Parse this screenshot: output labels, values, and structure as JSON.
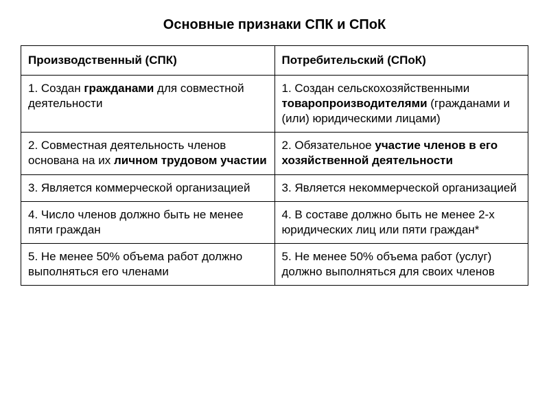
{
  "title": "Основные признаки  СПК и  СПоК",
  "headers": {
    "left": "Производственный (СПК)",
    "right": "Потребительский (СПоК)"
  },
  "rows": [
    {
      "left": {
        "prefix": "  1. Создан ",
        "bold": "гражданами",
        "suffix": " для совместной деятельности"
      },
      "right": {
        "prefix": "1.   Создан сельскохозяйственными ",
        "bold": "товаропроизводителями",
        "suffix": " (гражданами и (или) юридическими лицами)"
      }
    },
    {
      "left": {
        "prefix": "2. Совместная деятельность членов   основана на их ",
        "bold": "личном трудовом участии",
        "suffix": ""
      },
      "right": {
        "prefix": "2. Обязательное ",
        "bold": "участие членов   в его  хозяйственной деятельности",
        "suffix": ""
      }
    },
    {
      "left": {
        "prefix": "3. Является коммерческой организацией",
        "bold": "",
        "suffix": ""
      },
      "right": {
        "prefix": "3.   Является некоммерческой организацией",
        "bold": "",
        "suffix": ""
      }
    },
    {
      "left": {
        "prefix": "4. Число членов   должно быть не менее пяти граждан",
        "bold": "",
        "suffix": ""
      },
      "right": {
        "prefix": "4. В составе   должно быть не менее 2-х юридических лиц или пяти граждан*",
        "bold": "",
        "suffix": ""
      }
    },
    {
      "left": {
        "prefix": "5. Не менее 50% объема работ должно выполняться его членами",
        "bold": "",
        "suffix": ""
      },
      "right": {
        "prefix": "5. Не менее 50% объема работ (услуг) должно выполняться для своих членов",
        "bold": "",
        "suffix": ""
      }
    }
  ]
}
